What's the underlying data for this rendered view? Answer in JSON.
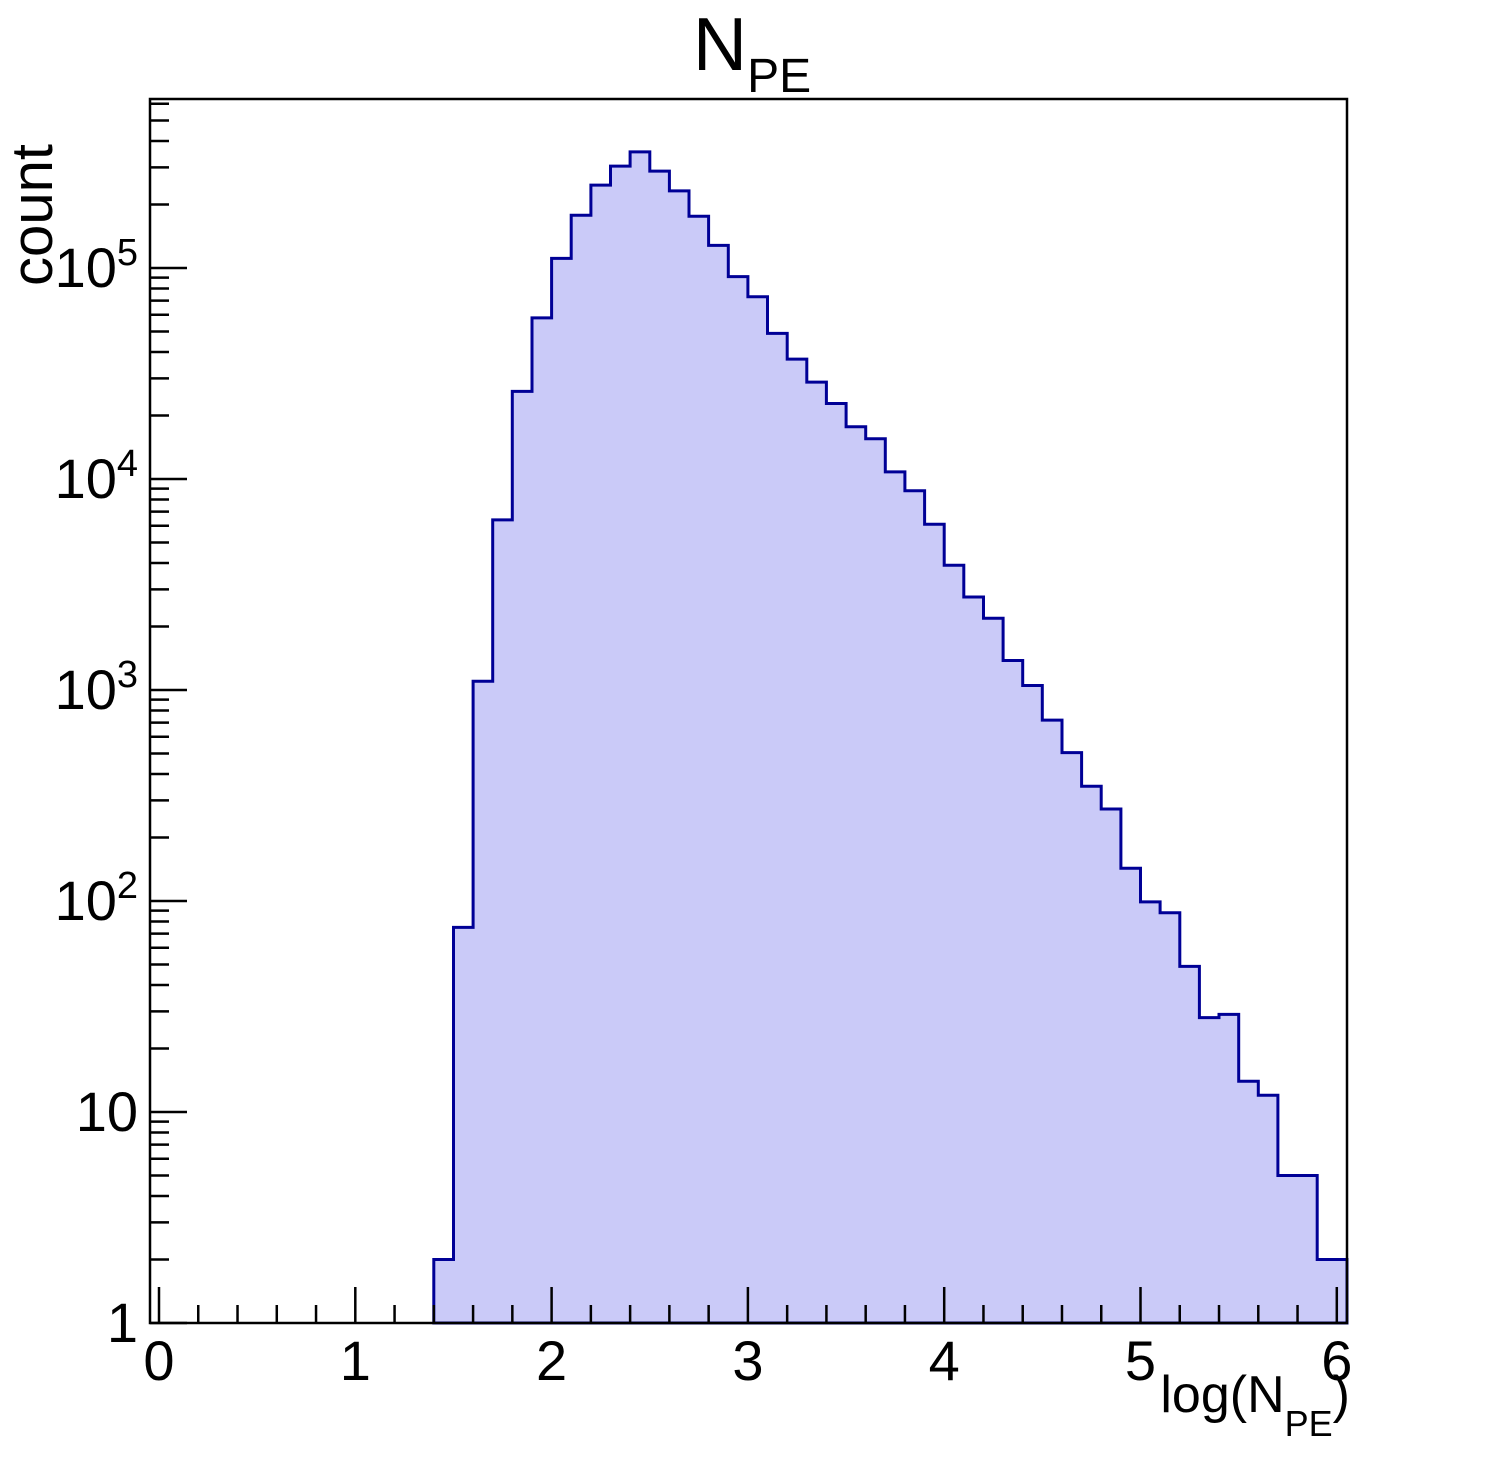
{
  "page": {
    "background": "#ffffff"
  },
  "chart_data": {
    "type": "bar",
    "subtype": "histogram-log-y",
    "title": {
      "main": "N",
      "subscript": "PE"
    },
    "xlabel": {
      "prefix": "log(N",
      "subscript": "PE",
      "suffix": ")"
    },
    "ylabel": "count",
    "x_axis": {
      "min": 0,
      "max": 6,
      "major_ticks": [
        0,
        1,
        2,
        3,
        4,
        5,
        6
      ],
      "major_tick_labels": [
        "0",
        "1",
        "2",
        "3",
        "4",
        "5",
        "6"
      ],
      "minor_tick_step": 0.2
    },
    "y_axis": {
      "scale": "log",
      "min": 1,
      "max": 650000,
      "major_tick_values": [
        1,
        10,
        100,
        1000,
        10000,
        100000
      ],
      "major_tick_labels": [
        "1",
        "10",
        "10^2",
        "10^3",
        "10^4",
        "10^5"
      ],
      "minor_ticks": "2-9 per decade"
    },
    "bins": {
      "start": 1.4,
      "width": 0.1,
      "counts": [
        2,
        75,
        1100,
        6400,
        26000,
        58000,
        111000,
        178000,
        247000,
        304000,
        355000,
        288000,
        232000,
        176000,
        128000,
        91000,
        73000,
        49000,
        37000,
        28800,
        22800,
        17700,
        15500,
        10800,
        8800,
        6100,
        3900,
        2760,
        2190,
        1380,
        1050,
        720,
        505,
        350,
        273,
        143,
        99,
        88,
        49,
        28,
        29,
        14,
        12,
        5,
        5,
        2
      ]
    },
    "legend": {
      "visible": false
    },
    "grid": false,
    "colors": {
      "histogram_fill": "#cacaf8",
      "histogram_line": "#000096",
      "axis_line": "#000000",
      "text": "#000000"
    }
  }
}
